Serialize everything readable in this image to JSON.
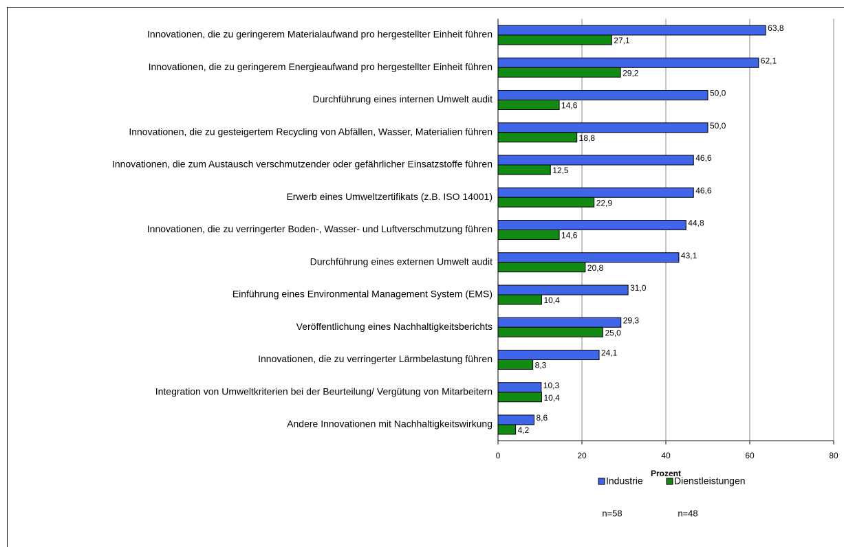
{
  "chart_data": {
    "type": "hbar",
    "categories": [
      "Innovationen, die zu geringerem Materialaufwand pro hergestellter Einheit führen",
      "Innovationen, die zu geringerem Energieaufwand pro hergestellter Einheit führen",
      "Durchführung eines internen Umwelt audit",
      "Innovationen, die zu gesteigertem Recycling von Abfällen, Wasser, Materialien führen",
      "Innovationen, die zum Austausch verschmutzender oder gefährlicher Einsatzstoffe führen",
      "Erwerb eines Umweltzertifikats (z.B. ISO 14001)",
      "Innovationen, die zu verringerter Boden-, Wasser- und Luftverschmutzung führen",
      "Durchführung eines externen Umwelt audit",
      "Einführung eines Environmental Management System (EMS)",
      "Veröffentlichung eines Nachhaltigkeitsberichts",
      "Innovationen, die zu verringerter Lärmbelastung führen",
      "Integration von Umweltkriterien bei der Beurteilung/ Vergütung von Mitarbeitern",
      "Andere Innovationen mit Nachhaltigkeitswirkung"
    ],
    "series": [
      {
        "name": "Industrie",
        "color": "#3f66e8",
        "values": [
          63.8,
          62.1,
          50.0,
          50.0,
          46.6,
          46.6,
          44.8,
          43.1,
          31.0,
          29.3,
          24.1,
          10.3,
          8.6
        ],
        "value_labels": [
          "63,8",
          "62,1",
          "50,0",
          "50,0",
          "46,6",
          "46,6",
          "44,8",
          "43,1",
          "31,0",
          "29,3",
          "24,1",
          "10,3",
          "8,6"
        ]
      },
      {
        "name": "Dienstleistungen",
        "color": "#138a13",
        "values": [
          27.1,
          29.2,
          14.6,
          18.8,
          12.5,
          22.9,
          14.6,
          20.8,
          10.4,
          25.0,
          8.3,
          10.4,
          4.2
        ],
        "value_labels": [
          "27,1",
          "29,2",
          "14,6",
          "18,8",
          "12,5",
          "22,9",
          "14,6",
          "20,8",
          "10,4",
          "25,0",
          "8,3",
          "10,4",
          "4,2"
        ]
      }
    ],
    "xlabel": "Prozent",
    "xlim": [
      0,
      80
    ],
    "xticks": [
      0,
      20,
      40,
      60,
      80
    ],
    "grid": true,
    "legend": "bottom",
    "annotations": [
      "n=58",
      "n=48"
    ]
  }
}
